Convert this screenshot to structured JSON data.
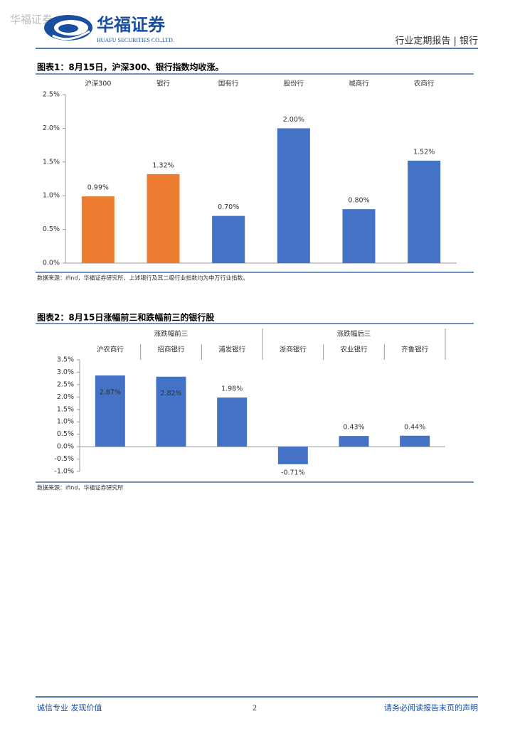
{
  "header": {
    "watermark": "华福证券",
    "logo_cn": "华福证券",
    "logo_en": "HUAFU SECURITIES CO.,LTD.",
    "report_info": "行业定期报告 | 银行"
  },
  "chart_data": [
    {
      "type": "bar",
      "title": "图表1：8月15日，沪深300、银行指数均收涨。",
      "categories": [
        "沪深300",
        "银行",
        "国有行",
        "股份行",
        "城商行",
        "农商行"
      ],
      "values": [
        0.99,
        1.32,
        0.7,
        2.0,
        0.8,
        1.52
      ],
      "value_labels": [
        "0.99%",
        "1.32%",
        "0.70%",
        "2.00%",
        "0.80%",
        "1.52%"
      ],
      "colors": [
        "#ED7D31",
        "#ED7D31",
        "#4472C4",
        "#4472C4",
        "#4472C4",
        "#4472C4"
      ],
      "ylim": [
        0,
        2.5
      ],
      "yticks": [
        {
          "value": 0,
          "label": "0.0%"
        },
        {
          "value": 0.5,
          "label": "0.5%"
        },
        {
          "value": 1.0,
          "label": "1.0%"
        },
        {
          "value": 1.5,
          "label": "1.5%"
        },
        {
          "value": 2.0,
          "label": "2.0%"
        },
        {
          "value": 2.5,
          "label": "2.5%"
        }
      ],
      "source": "数据来源：ifind，华福证券研究所，上述银行及其二级行业指数均为申万行业指数。"
    },
    {
      "type": "bar",
      "title": "图表2：8月15日涨幅前三和跌幅前三的银行股",
      "groups": [
        "涨跌幅前三",
        "涨跌幅后三"
      ],
      "categories": [
        "沪农商行",
        "招商银行",
        "浦发银行",
        "浙商银行",
        "农业银行",
        "齐鲁银行"
      ],
      "values": [
        2.87,
        2.82,
        1.98,
        -0.71,
        0.43,
        0.44
      ],
      "value_labels": [
        "2.87%",
        "2.82%",
        "1.98%",
        "-0.71%",
        "0.43%",
        "0.44%"
      ],
      "color": "#4472C4",
      "ylim": [
        -1.0,
        3.5
      ],
      "yticks": [
        {
          "value": -1.0,
          "label": "-1.0%"
        },
        {
          "value": -0.5,
          "label": "-0.5%"
        },
        {
          "value": 0,
          "label": "0.0%"
        },
        {
          "value": 0.5,
          "label": "0.5%"
        },
        {
          "value": 1.0,
          "label": "1.0%"
        },
        {
          "value": 1.5,
          "label": "1.5%"
        },
        {
          "value": 2.0,
          "label": "2.0%"
        },
        {
          "value": 2.5,
          "label": "2.5%"
        },
        {
          "value": 3.0,
          "label": "3.0%"
        },
        {
          "value": 3.5,
          "label": "3.5%"
        }
      ],
      "source": "数据来源：ifind，华福证券研究所"
    }
  ],
  "footer": {
    "left": "诚信专业  发现价值",
    "page": "2",
    "right": "请务必阅读报告末页的声明"
  }
}
